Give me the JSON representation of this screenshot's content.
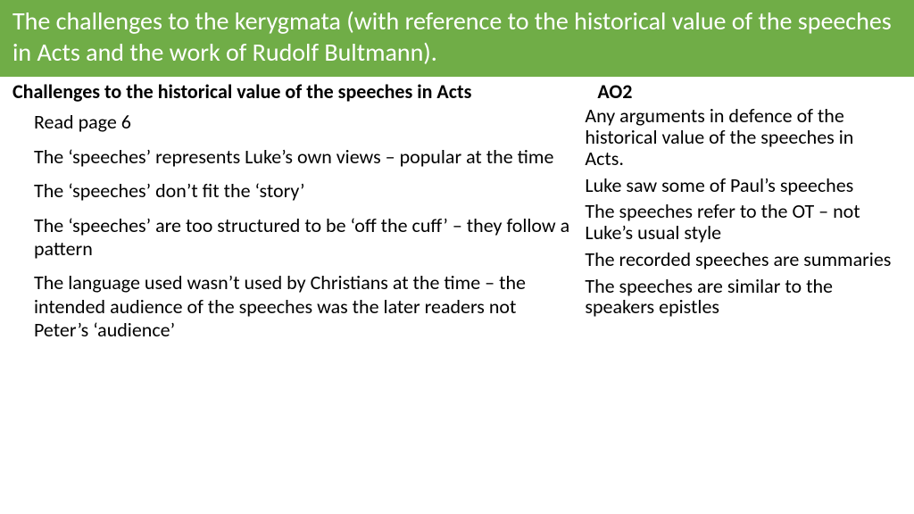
{
  "title": "The challenges to the kerygmata (with reference to the historical value of the speeches in Acts and the work of Rudolf Bultmann).",
  "left": {
    "heading": "Challenges to the historical value of the speeches in Acts",
    "items": [
      "Read  page 6",
      "The ‘speeches’ represents Luke’s own views – popular at the time",
      "The ‘speeches’ don’t fit the ‘story’",
      "The ‘speeches’ are too structured to be ‘off the cuff’ – they follow a pattern",
      "The language used wasn’t used by Christians at the time – the intended audience of the speeches was the later readers not Peter’s ‘audience’"
    ]
  },
  "right": {
    "heading": "AO2",
    "items": [
      "Any arguments in defence of the historical value of the speeches in Acts.",
      "Luke saw some of Paul’s speeches",
      "The speeches refer to the OT – not Luke’s usual style",
      "The recorded speeches are summaries",
      "The speeches are similar to the speakers epistles"
    ]
  },
  "colors": {
    "title_bg": "#70ad47",
    "title_text": "#ffffff",
    "body_text": "#000000",
    "page_bg": "#ffffff"
  }
}
